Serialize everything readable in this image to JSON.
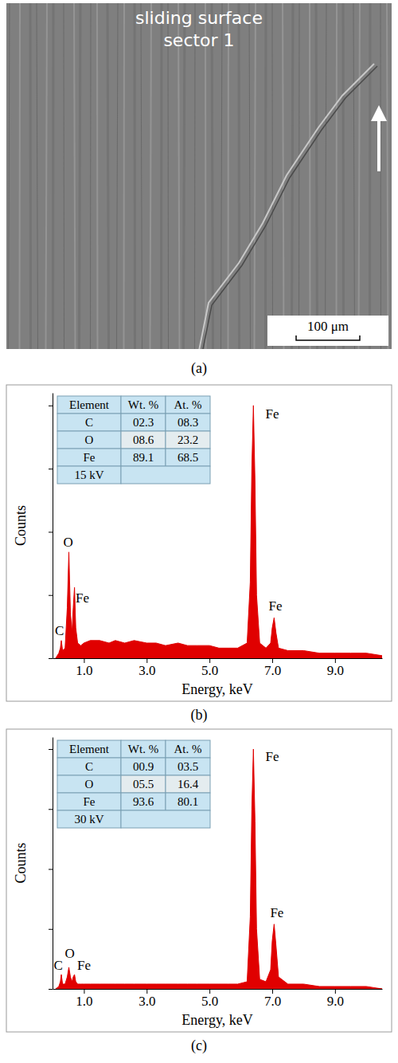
{
  "image_panel": {
    "panel_label": "(a)",
    "title_lines": [
      "sliding surface",
      "sector 1"
    ],
    "scale_bar": "100 μm"
  },
  "chart_data": [
    {
      "type": "area",
      "panel_label": "(b)",
      "x_label": "Energy, keV",
      "y_label": "Counts",
      "color": "#e00000",
      "x": [
        0.1,
        0.2,
        0.25,
        0.28,
        0.32,
        0.4,
        0.47,
        0.52,
        0.57,
        0.62,
        0.66,
        0.7,
        0.74,
        0.8,
        0.9,
        1.0,
        1.2,
        1.5,
        1.8,
        2.0,
        2.3,
        2.6,
        3.0,
        3.3,
        3.6,
        4.0,
        4.3,
        4.6,
        5.0,
        5.3,
        5.6,
        5.9,
        6.2,
        6.3,
        6.35,
        6.4,
        6.45,
        6.5,
        6.6,
        6.8,
        6.95,
        7.0,
        7.06,
        7.12,
        7.2,
        7.5,
        8.0,
        8.5,
        9.0,
        9.5,
        10.0,
        10.5
      ],
      "values": [
        0,
        2,
        4,
        7,
        3,
        4,
        20,
        42,
        18,
        10,
        20,
        28,
        12,
        6,
        5,
        6,
        7,
        7,
        6,
        7,
        6,
        7,
        6,
        6,
        5,
        6,
        5,
        5,
        5,
        4,
        4,
        4,
        6,
        30,
        75,
        100,
        70,
        25,
        6,
        4,
        6,
        12,
        16,
        10,
        4,
        3,
        3,
        2,
        2,
        2,
        2,
        1
      ],
      "xlim": [
        0,
        10.5
      ],
      "ylim": [
        0,
        105
      ],
      "xticks": [
        {
          "value": 1,
          "label": "1.0"
        },
        {
          "value": 3,
          "label": "3.0"
        },
        {
          "value": 5,
          "label": "5.0"
        },
        {
          "value": 7,
          "label": "7.0"
        },
        {
          "value": 9,
          "label": "9.0"
        }
      ],
      "yticks": [
        0,
        25,
        50,
        75,
        100
      ],
      "tick_labels": "x",
      "annotations": [
        {
          "text": "C",
          "x": 0.22,
          "y": 9
        },
        {
          "text": "O",
          "x": 0.5,
          "y": 44
        },
        {
          "text": "Fe",
          "x": 0.95,
          "y": 22
        },
        {
          "text": "Fe",
          "x": 7.0,
          "y": 95
        },
        {
          "text": "Fe",
          "x": 7.1,
          "y": 19
        }
      ],
      "table": {
        "columns": [
          "Element",
          "Wt. %",
          "At. %"
        ],
        "rows": [
          [
            "C",
            "02.3",
            "08.3"
          ],
          [
            "O",
            "08.6",
            "23.2"
          ],
          [
            "Fe",
            "89.1",
            "68.5"
          ]
        ],
        "note": "15 kV"
      }
    },
    {
      "type": "area",
      "panel_label": "(c)",
      "x_label": "Energy, keV",
      "y_label": "Counts",
      "color": "#e00000",
      "x": [
        0.1,
        0.2,
        0.25,
        0.28,
        0.32,
        0.4,
        0.47,
        0.52,
        0.57,
        0.62,
        0.66,
        0.7,
        0.74,
        0.8,
        0.9,
        1.0,
        1.2,
        1.5,
        1.8,
        2.0,
        2.3,
        2.6,
        3.0,
        3.3,
        3.6,
        4.0,
        4.3,
        4.6,
        5.0,
        5.3,
        5.6,
        5.9,
        6.2,
        6.3,
        6.35,
        6.4,
        6.45,
        6.5,
        6.6,
        6.8,
        6.95,
        7.0,
        7.06,
        7.12,
        7.2,
        7.5,
        8.0,
        8.5,
        9.0,
        9.5,
        10.0,
        10.5
      ],
      "values": [
        0,
        1,
        3,
        6,
        2,
        2,
        5,
        9,
        5,
        3,
        5,
        6,
        3,
        2,
        2,
        2,
        2,
        2,
        2,
        2,
        2,
        2,
        2,
        2,
        2,
        2,
        2,
        2,
        2,
        2,
        2,
        2,
        3,
        30,
        75,
        100,
        70,
        25,
        4,
        3,
        8,
        20,
        27,
        18,
        5,
        2,
        2,
        1,
        1,
        1,
        1,
        0
      ],
      "xlim": [
        0,
        10.5
      ],
      "ylim": [
        0,
        105
      ],
      "xticks": [
        {
          "value": 1,
          "label": "1.0"
        },
        {
          "value": 3,
          "label": "3.0"
        },
        {
          "value": 5,
          "label": "5.0"
        },
        {
          "value": 7,
          "label": "7.0"
        },
        {
          "value": 9,
          "label": "9.0"
        }
      ],
      "yticks": [
        0,
        25,
        50,
        75,
        100
      ],
      "tick_labels": "x",
      "annotations": [
        {
          "text": "C",
          "x": 0.18,
          "y": 8
        },
        {
          "text": "O",
          "x": 0.55,
          "y": 13
        },
        {
          "text": "Fe",
          "x": 1.0,
          "y": 8
        },
        {
          "text": "Fe",
          "x": 7.0,
          "y": 95
        },
        {
          "text": "Fe",
          "x": 7.15,
          "y": 30
        }
      ],
      "table": {
        "columns": [
          "Element",
          "Wt. %",
          "At. %"
        ],
        "rows": [
          [
            "C",
            "00.9",
            "03.5"
          ],
          [
            "O",
            "05.5",
            "16.4"
          ],
          [
            "Fe",
            "93.6",
            "80.1"
          ]
        ],
        "note": "30 kV"
      }
    }
  ]
}
